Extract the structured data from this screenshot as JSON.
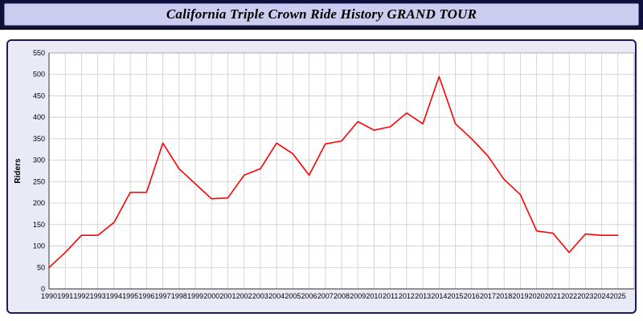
{
  "header": {
    "title": "California Triple Crown Ride History GRAND TOUR"
  },
  "colors": {
    "header_bg": "#10103a",
    "header_box_bg": "#ccccf0",
    "panel_bg": "#eaeaf7",
    "panel_border": "#1c1c5a",
    "plot_bg": "#ffffff",
    "grid": "#cccccc",
    "axis": "#555555",
    "line": "#ff0000"
  },
  "chart_data": {
    "type": "line",
    "title": "California Triple Crown Ride History GRAND TOUR",
    "xlabel": "",
    "ylabel": "Riders",
    "ylim": [
      0,
      550
    ],
    "y_tick_step": 50,
    "grid": true,
    "legend": "none",
    "categories": [
      "1990",
      "1991",
      "1992",
      "1993",
      "1994",
      "1995",
      "1996",
      "1997",
      "1998",
      "1999",
      "2000",
      "2001",
      "2002",
      "2003",
      "2004",
      "2005",
      "2006",
      "2007",
      "2008",
      "2009",
      "2010",
      "2011",
      "2012",
      "2013",
      "2014",
      "2015",
      "2016",
      "2017",
      "2018",
      "2019",
      "2020",
      "2021",
      "2022",
      "2023",
      "2024",
      "2025"
    ],
    "values": [
      50,
      85,
      125,
      125,
      155,
      225,
      225,
      340,
      280,
      245,
      210,
      212,
      265,
      280,
      340,
      315,
      265,
      338,
      345,
      390,
      370,
      378,
      410,
      385,
      495,
      385,
      350,
      310,
      255,
      220,
      135,
      130,
      85,
      128,
      125,
      125
    ]
  }
}
